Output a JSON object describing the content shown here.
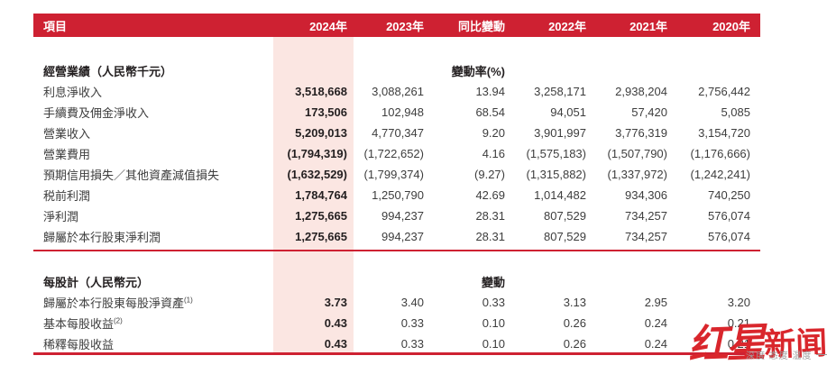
{
  "table": {
    "columns": [
      "項目",
      "2024年",
      "2023年",
      "同比變動",
      "2022年",
      "2021年",
      "2020年"
    ],
    "sections": [
      {
        "header": "經營業績（人民幣千元）",
        "change_header": "變動率(%)",
        "rows": [
          {
            "label": "利息淨收入",
            "values": [
              "3,518,668",
              "3,088,261",
              "13.94",
              "3,258,171",
              "2,938,204",
              "2,756,442"
            ]
          },
          {
            "label": "手續費及佣金淨收入",
            "values": [
              "173,506",
              "102,948",
              "68.54",
              "94,051",
              "57,420",
              "5,085"
            ]
          },
          {
            "label": "營業收入",
            "values": [
              "5,209,013",
              "4,770,347",
              "9.20",
              "3,901,997",
              "3,776,319",
              "3,154,720"
            ]
          },
          {
            "label": "營業費用",
            "values": [
              "(1,794,319)",
              "(1,722,652)",
              "4.16",
              "(1,575,183)",
              "(1,507,790)",
              "(1,176,666)"
            ]
          },
          {
            "label": "預期信用損失／其他資產減值損失",
            "values": [
              "(1,632,529)",
              "(1,799,374)",
              "(9.27)",
              "(1,315,882)",
              "(1,337,972)",
              "(1,242,241)"
            ]
          },
          {
            "label": "税前利潤",
            "values": [
              "1,784,764",
              "1,250,790",
              "42.69",
              "1,014,482",
              "934,306",
              "740,250"
            ]
          },
          {
            "label": "淨利潤",
            "values": [
              "1,275,665",
              "994,237",
              "28.31",
              "807,529",
              "734,257",
              "576,074"
            ]
          },
          {
            "label": "歸屬於本行股東淨利潤",
            "values": [
              "1,275,665",
              "994,237",
              "28.31",
              "807,529",
              "734,257",
              "576,074"
            ]
          }
        ]
      },
      {
        "header": "每股計（人民幣元）",
        "change_header": "變動",
        "rows": [
          {
            "label": "歸屬於本行股東每股淨資產",
            "superscript": "(1)",
            "values": [
              "3.73",
              "3.40",
              "0.33",
              "3.13",
              "2.95",
              "3.20"
            ]
          },
          {
            "label": "基本每股收益",
            "superscript": "(2)",
            "values": [
              "0.43",
              "0.33",
              "0.10",
              "0.26",
              "0.24",
              "0.21"
            ]
          },
          {
            "label": "稀釋每股收益",
            "values": [
              "0.43",
              "0.33",
              "0.10",
              "0.26",
              "0.24",
              "0.21"
            ]
          }
        ]
      }
    ]
  },
  "watermark": {
    "brand_script": "红星",
    "brand_block": "新闻",
    "tagline": "深度 态度 温度"
  },
  "colors": {
    "header_red": "#CE2132",
    "highlight_pink": "#FBE6E2",
    "watermark_red": "#D9262C"
  }
}
